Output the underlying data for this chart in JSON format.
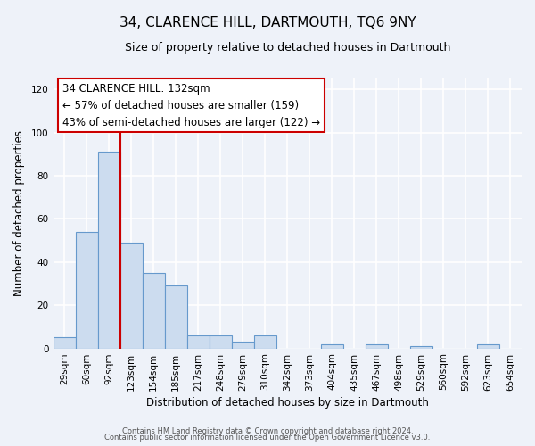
{
  "title": "34, CLARENCE HILL, DARTMOUTH, TQ6 9NY",
  "subtitle": "Size of property relative to detached houses in Dartmouth",
  "xlabel": "Distribution of detached houses by size in Dartmouth",
  "ylabel": "Number of detached properties",
  "bar_labels": [
    "29sqm",
    "60sqm",
    "92sqm",
    "123sqm",
    "154sqm",
    "185sqm",
    "217sqm",
    "248sqm",
    "279sqm",
    "310sqm",
    "342sqm",
    "373sqm",
    "404sqm",
    "435sqm",
    "467sqm",
    "498sqm",
    "529sqm",
    "560sqm",
    "592sqm",
    "623sqm",
    "654sqm"
  ],
  "bar_values": [
    5,
    54,
    91,
    49,
    35,
    29,
    6,
    6,
    3,
    6,
    0,
    0,
    2,
    0,
    2,
    0,
    1,
    0,
    0,
    2,
    0
  ],
  "bar_color": "#ccdcef",
  "bar_edge_color": "#6699cc",
  "vline_color": "#cc0000",
  "vline_index": 3,
  "annotation_title": "34 CLARENCE HILL: 132sqm",
  "annotation_line1": "← 57% of detached houses are smaller (159)",
  "annotation_line2": "43% of semi-detached houses are larger (122) →",
  "annotation_box_facecolor": "#ffffff",
  "annotation_box_edgecolor": "#cc0000",
  "ylim": [
    0,
    125
  ],
  "yticks": [
    0,
    20,
    40,
    60,
    80,
    100,
    120
  ],
  "footnote1": "Contains HM Land Registry data © Crown copyright and database right 2024.",
  "footnote2": "Contains public sector information licensed under the Open Government Licence v3.0.",
  "background_color": "#eef2f9",
  "plot_bg_color": "#eef2f9",
  "grid_color": "#ffffff",
  "title_fontsize": 11,
  "subtitle_fontsize": 9,
  "axis_label_fontsize": 8.5,
  "tick_fontsize": 7.5,
  "annotation_fontsize": 8.5,
  "footnote_fontsize": 6
}
